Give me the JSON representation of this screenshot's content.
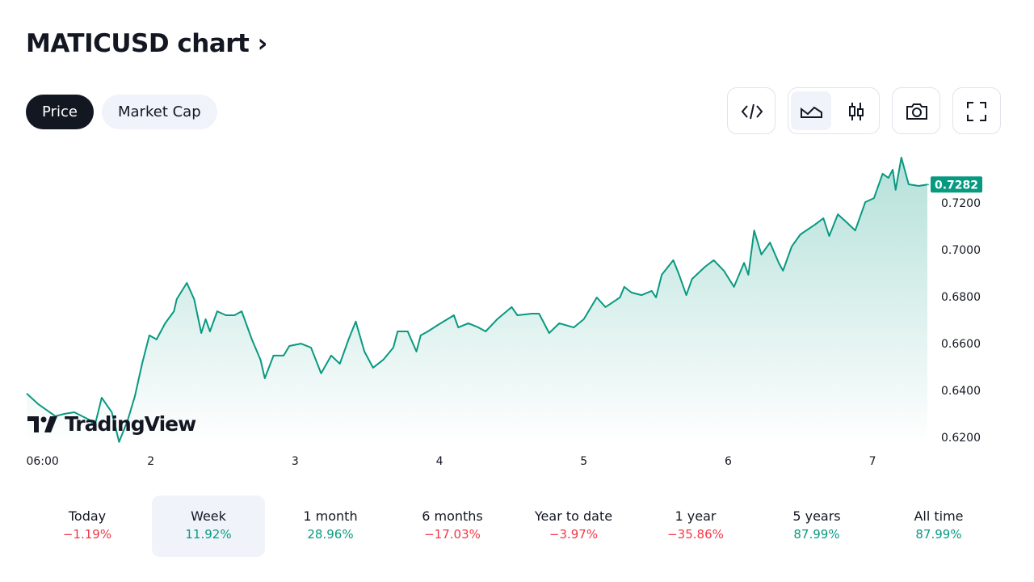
{
  "header": {
    "title": "MATICUSD chart"
  },
  "tabs": [
    "Price",
    "Market Cap"
  ],
  "watermark": "TradingView",
  "chart_data": {
    "type": "line",
    "color": "#089981",
    "x": [
      1.14,
      1.22,
      1.3,
      1.34,
      1.4,
      1.47,
      1.58,
      1.61,
      1.66,
      1.73,
      1.78,
      1.84,
      1.89,
      1.94,
      1.99,
      2.04,
      2.1,
      2.16,
      2.18,
      2.25,
      2.3,
      2.35,
      2.38,
      2.41,
      2.46,
      2.52,
      2.58,
      2.63,
      2.7,
      2.76,
      2.79,
      2.85,
      2.92,
      2.96,
      3.04,
      3.11,
      3.18,
      3.25,
      3.31,
      3.37,
      3.42,
      3.48,
      3.54,
      3.61,
      3.68,
      3.71,
      3.78,
      3.84,
      3.87,
      3.92,
      3.99,
      4.1,
      4.13,
      4.2,
      4.27,
      4.32,
      4.4,
      4.5,
      4.54,
      4.64,
      4.69,
      4.76,
      4.83,
      4.93,
      5.0,
      5.09,
      5.15,
      5.25,
      5.28,
      5.33,
      5.4,
      5.47,
      5.5,
      5.54,
      5.62,
      5.66,
      5.71,
      5.75,
      5.84,
      5.9,
      5.97,
      6.04,
      6.11,
      6.14,
      6.18,
      6.23,
      6.29,
      6.35,
      6.38,
      6.44,
      6.5,
      6.6,
      6.66,
      6.7,
      6.76,
      6.82,
      6.88,
      6.95,
      7.01,
      7.07,
      7.11,
      7.14,
      7.16,
      7.2,
      7.25,
      7.32,
      7.38
    ],
    "values": [
      0.639,
      0.6345,
      0.631,
      0.6293,
      0.6303,
      0.631,
      0.6276,
      0.6248,
      0.6372,
      0.631,
      0.6183,
      0.6276,
      0.6379,
      0.6517,
      0.6638,
      0.6621,
      0.669,
      0.6741,
      0.6793,
      0.6862,
      0.6793,
      0.6648,
      0.6707,
      0.6655,
      0.6741,
      0.6724,
      0.6724,
      0.6741,
      0.6621,
      0.6534,
      0.6455,
      0.6552,
      0.6552,
      0.6593,
      0.6603,
      0.6586,
      0.6476,
      0.6552,
      0.6517,
      0.6621,
      0.6697,
      0.6569,
      0.65,
      0.6534,
      0.6586,
      0.6655,
      0.6655,
      0.6569,
      0.6638,
      0.6655,
      0.6683,
      0.6724,
      0.6672,
      0.669,
      0.6672,
      0.6655,
      0.6707,
      0.6759,
      0.6724,
      0.6731,
      0.6731,
      0.6648,
      0.669,
      0.6672,
      0.6707,
      0.68,
      0.6759,
      0.68,
      0.6845,
      0.6821,
      0.681,
      0.6828,
      0.68,
      0.6897,
      0.6959,
      0.6897,
      0.681,
      0.6879,
      0.6931,
      0.6959,
      0.6914,
      0.6845,
      0.6948,
      0.6897,
      0.7086,
      0.6983,
      0.7034,
      0.6948,
      0.6914,
      0.7017,
      0.7069,
      0.711,
      0.7138,
      0.7062,
      0.7155,
      0.7121,
      0.7086,
      0.7207,
      0.7224,
      0.7328,
      0.731,
      0.7345,
      0.7259,
      0.7397,
      0.7283,
      0.7276,
      0.7282
    ],
    "xlim": [
      1.14,
      7.38
    ],
    "ylim": [
      0.6172,
      0.7414
    ],
    "xticks": [
      {
        "value": 1.25,
        "label": "06:00"
      },
      2,
      3,
      4,
      5,
      6,
      7
    ],
    "yticks": [
      {
        "value": 0.62,
        "label": "0.6200"
      },
      {
        "value": 0.64,
        "label": "0.6400"
      },
      {
        "value": 0.66,
        "label": "0.6600"
      },
      {
        "value": 0.68,
        "label": "0.6800"
      },
      {
        "value": 0.7,
        "label": "0.7000"
      },
      {
        "value": 0.72,
        "label": "0.7200"
      }
    ]
  },
  "periods": [
    {
      "label": "Today",
      "change": "−1.19%"
    },
    {
      "label": "Week",
      "change": "11.92%"
    },
    {
      "label": "1 month",
      "change": "28.96%"
    },
    {
      "label": "6 months",
      "change": "−17.03%"
    },
    {
      "label": "Year to date",
      "change": "−3.97%"
    },
    {
      "label": "1 year",
      "change": "−35.86%"
    },
    {
      "label": "5 years",
      "change": "87.99%"
    },
    {
      "label": "All time",
      "change": "87.99%"
    }
  ]
}
